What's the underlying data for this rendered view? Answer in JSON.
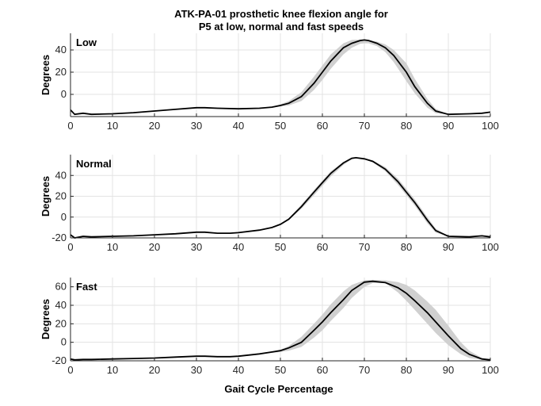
{
  "chart_data": {
    "title": [
      "ATK-PA-01 prosthetic knee flexion angle for",
      "P5 at low, normal and fast speeds"
    ],
    "xlabel": "Gait Cycle Percentage",
    "colors": {
      "mean_line": "#000000",
      "band": "#d0d0d0",
      "grid": "#e3e3e3"
    },
    "grid": true,
    "panels": [
      {
        "type": "area",
        "label": "Low",
        "ylabel": "Degrees",
        "xlim": [
          0,
          100
        ],
        "ylim": [
          -20,
          55
        ],
        "yticks": [
          0,
          20,
          40
        ],
        "xticks": [
          0,
          10,
          20,
          30,
          40,
          50,
          60,
          70,
          80,
          90,
          100
        ],
        "series": [
          {
            "x": [
              0,
              1,
              3,
              5,
              10,
              15,
              20,
              25,
              30,
              32,
              35,
              40,
              45,
              48,
              50,
              52,
              55,
              58,
              60,
              62,
              65,
              67,
              69,
              70,
              71,
              73,
              75,
              77,
              80,
              82,
              85,
              87,
              90,
              95,
              98,
              100
            ],
            "mean": [
              -14,
              -18,
              -17,
              -18,
              -17.5,
              -16.5,
              -15,
              -13.5,
              -12,
              -12,
              -12.5,
              -13,
              -12.5,
              -11.5,
              -10,
              -8,
              -2,
              10,
              20,
              30,
              42,
              46,
              48.5,
              49,
              48.5,
              46,
              42,
              35,
              20,
              7,
              -8,
              -15,
              -18,
              -17.5,
              -17,
              -16
            ],
            "upper": [
              -14,
              -18,
              -17,
              -18,
              -17.5,
              -16.5,
              -15,
              -13.5,
              -12,
              -12,
              -12.5,
              -13,
              -12.5,
              -11,
              -9,
              -6,
              2,
              16,
              26,
              36,
              46,
              49,
              49.5,
              49.5,
              49,
              47.5,
              45,
              40,
              28,
              14,
              -4,
              -13,
              -18,
              -17.5,
              -17,
              -16
            ],
            "lower": [
              -14,
              -18,
              -17,
              -18,
              -17.5,
              -16.5,
              -15,
              -13.5,
              -12,
              -12,
              -12.5,
              -13,
              -12.5,
              -12,
              -11,
              -10,
              -6,
              4,
              13,
              23,
              36,
              42,
              45.5,
              46,
              46,
              43.5,
              38,
              29,
              12,
              1,
              -12,
              -17,
              -18,
              -17.5,
              -17,
              -16
            ]
          }
        ]
      },
      {
        "type": "area",
        "label": "Normal",
        "ylabel": "Degrees",
        "xlim": [
          0,
          100
        ],
        "ylim": [
          -20,
          60
        ],
        "yticks": [
          -20,
          0,
          20,
          40
        ],
        "xticks": [
          0,
          10,
          20,
          30,
          40,
          50,
          60,
          70,
          80,
          90,
          100
        ],
        "series": [
          {
            "x": [
              0,
              1,
              3,
              5,
              10,
              15,
              20,
              25,
              30,
              32,
              35,
              38,
              40,
              45,
              48,
              50,
              52,
              55,
              58,
              60,
              62,
              65,
              67,
              68,
              70,
              72,
              75,
              78,
              80,
              82,
              85,
              87,
              90,
              95,
              98,
              100
            ],
            "mean": [
              -17,
              -20,
              -18.5,
              -19,
              -18.5,
              -18,
              -17,
              -16,
              -14.5,
              -14.5,
              -15.5,
              -15.5,
              -15,
              -12.5,
              -10,
              -7,
              -2,
              10,
              24,
              33,
              42,
              52,
              56.5,
              57,
              56,
              53.5,
              46,
              34,
              24,
              14,
              -3,
              -13,
              -18.5,
              -19,
              -18,
              -19
            ],
            "upper": [
              -17,
              -20,
              -18.5,
              -19,
              -18.5,
              -18,
              -17,
              -16,
              -14.5,
              -14.5,
              -15.5,
              -15.5,
              -15,
              -12.5,
              -10,
              -6.5,
              -1,
              12,
              26,
              35,
              44,
              53,
              57,
              57.5,
              56.5,
              54.5,
              48,
              37,
              27,
              17,
              0,
              -11,
              -18.5,
              -19,
              -18,
              -19
            ],
            "lower": [
              -17,
              -20,
              -18.5,
              -19,
              -18.5,
              -18,
              -17,
              -16,
              -14.5,
              -14.5,
              -15.5,
              -15.5,
              -15,
              -12.5,
              -10,
              -7.5,
              -3,
              8,
              21,
              30,
              39,
              50,
              55.5,
              56.5,
              55.5,
              52.5,
              44,
              31,
              21,
              11,
              -6,
              -15,
              -18.5,
              -19,
              -18,
              -19
            ]
          }
        ]
      },
      {
        "type": "area",
        "label": "Fast",
        "ylabel": "Degrees",
        "xlim": [
          0,
          100
        ],
        "ylim": [
          -20,
          70
        ],
        "yticks": [
          -20,
          0,
          20,
          40,
          60
        ],
        "xticks": [
          0,
          10,
          20,
          30,
          40,
          50,
          60,
          70,
          80,
          90,
          100
        ],
        "series": [
          {
            "x": [
              0,
              1,
              3,
              5,
              10,
              15,
              20,
              25,
              30,
              32,
              35,
              38,
              40,
              45,
              48,
              50,
              52,
              55,
              58,
              60,
              62,
              65,
              67,
              70,
              72,
              75,
              78,
              80,
              82,
              85,
              87,
              90,
              93,
              95,
              98,
              100
            ],
            "mean": [
              -18,
              -19,
              -18.5,
              -18.5,
              -18,
              -17.5,
              -17,
              -16,
              -15,
              -15,
              -15.5,
              -15.5,
              -15,
              -12.5,
              -10.5,
              -9,
              -6,
              0,
              13,
              22,
              32,
              46,
              56,
              65,
              66,
              64.5,
              59,
              53,
              45,
              32,
              22,
              7,
              -7,
              -13,
              -18,
              -19
            ],
            "upper": [
              -18,
              -19,
              -18.5,
              -18.5,
              -18,
              -17.5,
              -17,
              -16,
              -15,
              -15,
              -15.5,
              -15.5,
              -15,
              -12.5,
              -10,
              -8,
              -4,
              6,
              20,
              30,
              41,
              55,
              62,
              67,
              67.5,
              67,
              65,
              62,
              56,
              44,
              35,
              18,
              0,
              -9,
              -17,
              -19
            ],
            "lower": [
              -18,
              -19,
              -18.5,
              -18.5,
              -18,
              -17.5,
              -17,
              -16,
              -15,
              -15,
              -15.5,
              -15.5,
              -15,
              -13,
              -11.5,
              -10.5,
              -9,
              -5,
              5,
              13,
              23,
              37,
              48,
              60,
              64,
              64,
              54,
              45,
              35,
              20,
              10,
              -3,
              -13,
              -17,
              -19,
              -19.5
            ]
          }
        ]
      }
    ]
  }
}
